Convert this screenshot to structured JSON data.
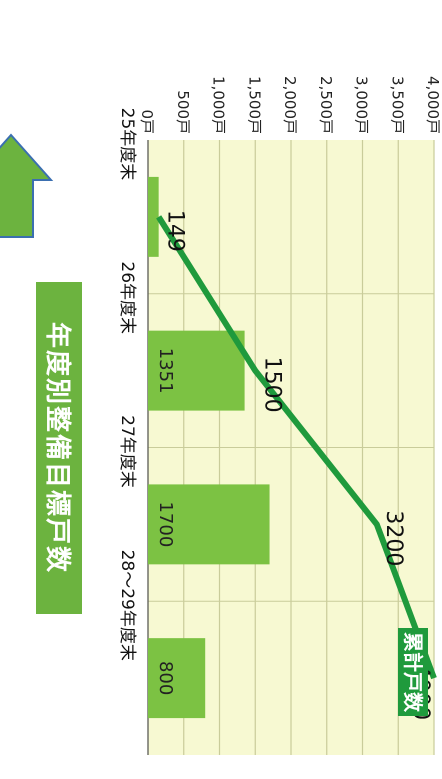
{
  "chart_data": {
    "type": "bar",
    "orientation": "rotated-90-clockwise",
    "categories": [
      "25年度末",
      "26年度末",
      "27年度末",
      "28～29年度末"
    ],
    "series": [
      {
        "name": "年度別整備目標戸数",
        "type": "bar",
        "values": [
          149,
          1351,
          1700,
          800
        ],
        "data_labels": [
          "",
          "1351",
          "1700",
          "800"
        ]
      },
      {
        "name": "累計戸数",
        "type": "line",
        "values": [
          149,
          1500,
          3200,
          4000
        ],
        "data_labels": [
          "149",
          "1500",
          "3200",
          "4000"
        ]
      }
    ],
    "y_ticks": [
      "0戸",
      "500戸",
      "1,000戸",
      "1,500戸",
      "2,000戸",
      "2,500戸",
      "3,000戸",
      "3,500戸",
      "4,000戸"
    ],
    "ylim": [
      0,
      4000
    ],
    "grid": true,
    "colors": {
      "bar": "#7cc243",
      "line": "#1f9a3c",
      "plot_bg": "#f7f9d2",
      "grid": "#c9cc9a",
      "arrow": "#6cb33f",
      "arrow_border": "#3b6fb0",
      "label_box": "#6cb33f",
      "label_text": "#ffffff"
    }
  }
}
